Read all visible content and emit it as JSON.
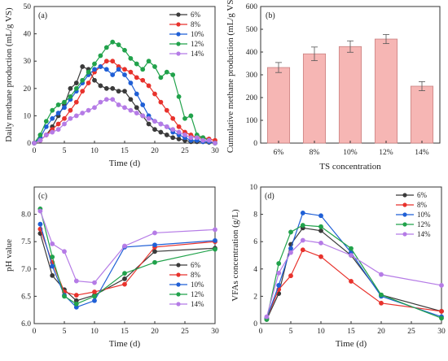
{
  "chart_data": [
    {
      "id": "a",
      "type": "line",
      "panel_label": "(a)",
      "xlabel": "Time (d)",
      "ylabel": "Daily methane production (mL/g VS)",
      "xlim": [
        0,
        30
      ],
      "ylim": [
        0,
        50
      ],
      "xticks": [
        0,
        5,
        10,
        15,
        20,
        25,
        30
      ],
      "yticks": [
        0,
        10,
        20,
        30,
        40,
        50
      ],
      "legend_position": "top-right",
      "series": [
        {
          "name": "6%",
          "color": "#3a3a3a",
          "x": [
            0,
            1,
            2,
            3,
            4,
            5,
            6,
            7,
            8,
            9,
            10,
            11,
            12,
            13,
            14,
            15,
            16,
            17,
            18,
            19,
            20,
            21,
            22,
            23,
            24,
            25,
            26,
            27,
            28,
            29,
            30
          ],
          "y": [
            0,
            1,
            3,
            6,
            10,
            14,
            20,
            22,
            28,
            27,
            23,
            21,
            20,
            20,
            19,
            19,
            16,
            13,
            10,
            7,
            5,
            4,
            3,
            2,
            1.5,
            1,
            0.5,
            0.5,
            0.5,
            0.3,
            0
          ]
        },
        {
          "name": "8%",
          "color": "#e8322c",
          "x": [
            0,
            1,
            2,
            3,
            4,
            5,
            6,
            7,
            8,
            9,
            10,
            11,
            12,
            13,
            14,
            15,
            16,
            17,
            18,
            19,
            20,
            21,
            22,
            23,
            24,
            25,
            26,
            27,
            28,
            29,
            30
          ],
          "y": [
            0,
            1,
            3,
            5,
            7,
            9,
            12,
            15,
            19,
            22,
            26,
            28,
            30,
            30,
            28,
            27,
            26,
            24,
            23,
            21,
            18,
            15,
            12,
            9,
            6,
            4,
            3,
            2,
            2,
            1.5,
            1
          ]
        },
        {
          "name": "10%",
          "color": "#1f5fd6",
          "x": [
            0,
            1,
            2,
            3,
            4,
            5,
            6,
            7,
            8,
            9,
            10,
            11,
            12,
            13,
            14,
            15,
            16,
            17,
            18,
            19,
            20,
            21,
            22,
            23,
            24,
            25,
            26,
            27,
            28,
            29,
            30
          ],
          "y": [
            0,
            2,
            6,
            9,
            11,
            13,
            16,
            19,
            22,
            25,
            27,
            28,
            27,
            25,
            27,
            25,
            22,
            18,
            14,
            10,
            8,
            7,
            6,
            4,
            3,
            2,
            1,
            1,
            0.5,
            0.5,
            0
          ]
        },
        {
          "name": "12%",
          "color": "#21a24b",
          "x": [
            0,
            1,
            2,
            3,
            4,
            5,
            6,
            7,
            8,
            9,
            10,
            11,
            12,
            13,
            14,
            15,
            16,
            17,
            18,
            19,
            20,
            21,
            22,
            23,
            24,
            25,
            26,
            27,
            28,
            29,
            30
          ],
          "y": [
            0,
            3,
            8,
            12,
            14,
            15,
            17,
            20,
            23,
            26,
            29,
            32,
            35,
            37,
            36,
            34,
            31,
            29,
            27,
            30,
            28,
            24,
            26,
            25,
            17,
            9,
            10,
            3,
            2,
            1,
            0
          ]
        },
        {
          "name": "14%",
          "color": "#b57be6",
          "x": [
            0,
            1,
            2,
            3,
            4,
            5,
            6,
            7,
            8,
            9,
            10,
            11,
            12,
            13,
            14,
            15,
            16,
            17,
            18,
            19,
            20,
            21,
            22,
            23,
            24,
            25,
            26,
            27,
            28,
            29,
            30
          ],
          "y": [
            0,
            1,
            3,
            4,
            5,
            7,
            9,
            10,
            11,
            12,
            13,
            15,
            16,
            16,
            14,
            13,
            12,
            11,
            10,
            9,
            8,
            7,
            6,
            5,
            4,
            3,
            2,
            2,
            1,
            1,
            0
          ]
        }
      ]
    },
    {
      "id": "b",
      "type": "bar",
      "panel_label": "(b)",
      "xlabel": "TS concentration",
      "ylabel": "Cumulative methane production (mL/g VS)",
      "ylim": [
        0,
        600
      ],
      "yticks": [
        0,
        100,
        200,
        300,
        400,
        500,
        600
      ],
      "categories": [
        "6%",
        "8%",
        "10%",
        "12%",
        "14%"
      ],
      "values": [
        332,
        392,
        424,
        457,
        250
      ],
      "errors": [
        22,
        30,
        25,
        20,
        20
      ],
      "bar_color": "#f6b6b4",
      "bar_edge": "#c98080"
    },
    {
      "id": "c",
      "type": "line",
      "panel_label": "(c)",
      "xlabel": "Time (d)",
      "ylabel": "pH value",
      "xlim": [
        0,
        30
      ],
      "ylim": [
        6.0,
        8.5
      ],
      "xticks": [
        0,
        5,
        10,
        15,
        20,
        25,
        30
      ],
      "yticks": [
        6.0,
        6.5,
        7.0,
        7.5,
        8.0
      ],
      "legend_position": "bottom-right",
      "series": [
        {
          "name": "6%",
          "color": "#3a3a3a",
          "x": [
            1,
            3,
            5,
            7,
            10,
            15,
            20,
            30
          ],
          "y": [
            7.65,
            6.88,
            6.62,
            6.42,
            6.52,
            6.82,
            7.32,
            7.38
          ]
        },
        {
          "name": "8%",
          "color": "#e8322c",
          "x": [
            1,
            3,
            5,
            7,
            10,
            15,
            20,
            30
          ],
          "y": [
            7.73,
            7.12,
            6.58,
            6.52,
            6.58,
            6.72,
            7.4,
            7.5
          ]
        },
        {
          "name": "10%",
          "color": "#1f5fd6",
          "x": [
            1,
            3,
            5,
            7,
            10,
            15,
            20,
            30
          ],
          "y": [
            7.82,
            7.05,
            6.52,
            6.3,
            6.42,
            7.4,
            7.44,
            7.52
          ]
        },
        {
          "name": "12%",
          "color": "#21a24b",
          "x": [
            1,
            3,
            5,
            7,
            10,
            15,
            20,
            30
          ],
          "y": [
            8.1,
            7.22,
            6.5,
            6.36,
            6.5,
            6.92,
            7.12,
            7.36
          ]
        },
        {
          "name": "14%",
          "color": "#b57be6",
          "x": [
            1,
            3,
            5,
            7,
            10,
            15,
            20,
            30
          ],
          "y": [
            8.06,
            7.46,
            7.32,
            6.78,
            6.75,
            7.42,
            7.66,
            7.72
          ]
        }
      ]
    },
    {
      "id": "d",
      "type": "line",
      "panel_label": "(d)",
      "xlabel": "Time (d)",
      "ylabel": "VFAs concentration (g/L)",
      "xlim": [
        0,
        30
      ],
      "ylim": [
        0,
        10
      ],
      "xticks": [
        0,
        5,
        10,
        15,
        20,
        25,
        30
      ],
      "yticks": [
        0,
        2,
        4,
        6,
        8,
        10
      ],
      "legend_position": "top-right",
      "series": [
        {
          "name": "6%",
          "color": "#3a3a3a",
          "x": [
            1,
            3,
            5,
            7,
            10,
            15,
            20,
            30
          ],
          "y": [
            0.3,
            2.2,
            5.8,
            7.0,
            6.8,
            5.0,
            2.1,
            0.9
          ]
        },
        {
          "name": "8%",
          "color": "#e8322c",
          "x": [
            1,
            3,
            5,
            7,
            10,
            15,
            20,
            30
          ],
          "y": [
            0.4,
            2.5,
            3.5,
            5.4,
            4.9,
            3.1,
            1.5,
            0.9
          ]
        },
        {
          "name": "10%",
          "color": "#1f5fd6",
          "x": [
            1,
            3,
            5,
            7,
            10,
            15,
            20,
            30
          ],
          "y": [
            0.4,
            2.8,
            5.5,
            8.1,
            7.9,
            5.2,
            2.0,
            0.5
          ]
        },
        {
          "name": "12%",
          "color": "#21a24b",
          "x": [
            1,
            3,
            5,
            7,
            10,
            15,
            20,
            30
          ],
          "y": [
            0.3,
            4.4,
            6.7,
            7.2,
            7.1,
            5.5,
            2.1,
            0.4
          ]
        },
        {
          "name": "14%",
          "color": "#b57be6",
          "x": [
            1,
            3,
            5,
            7,
            10,
            15,
            20,
            30
          ],
          "y": [
            0.5,
            3.7,
            5.2,
            6.1,
            5.9,
            5.0,
            3.6,
            2.8
          ]
        }
      ]
    }
  ]
}
